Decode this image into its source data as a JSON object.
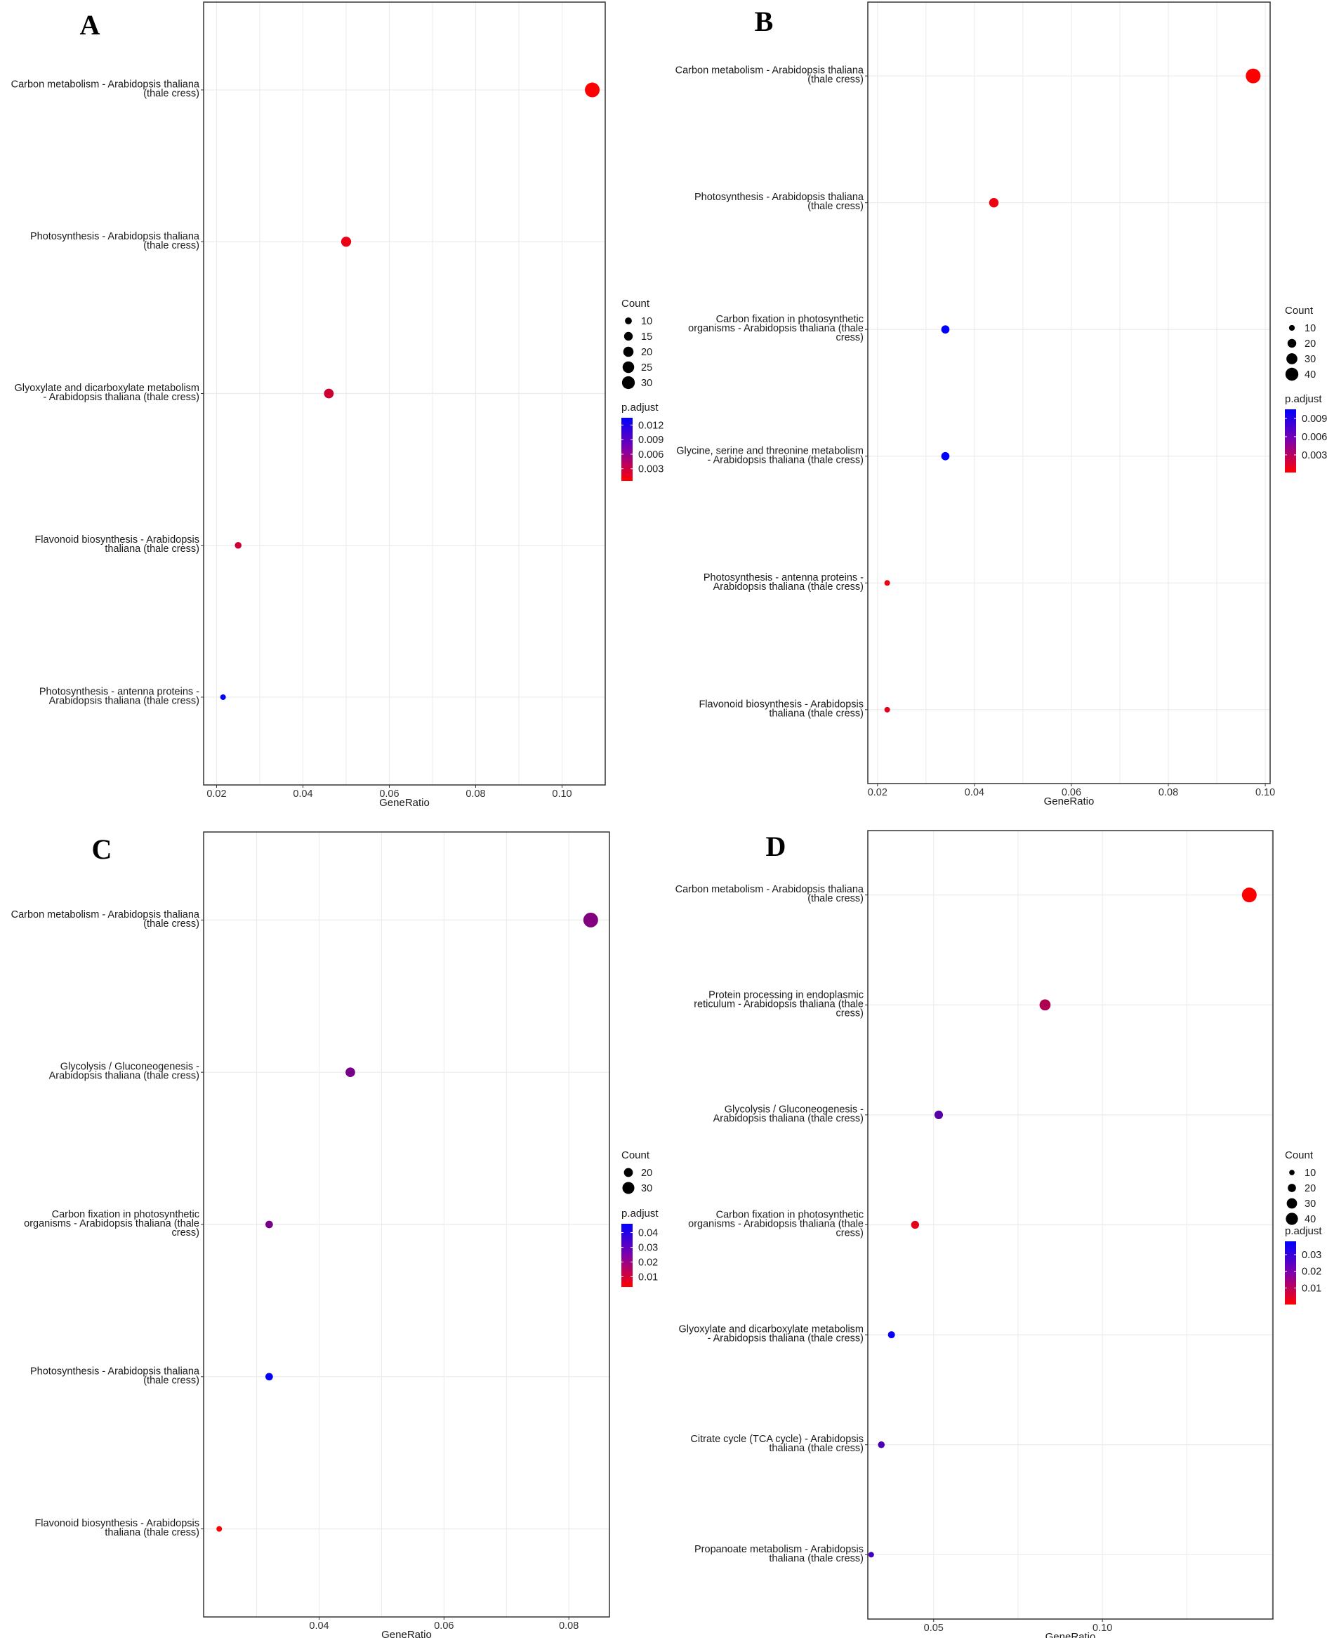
{
  "chart_data": [
    {
      "type": "scatter",
      "panel": "A",
      "xlabel": "GeneRatio",
      "xlim": [
        0.017,
        0.11
      ],
      "xticks": [
        0.02,
        0.04,
        0.06,
        0.08,
        0.1
      ],
      "xtick_labels": [
        "0.02",
        "0.04",
        "0.06",
        "0.08",
        "0.10"
      ],
      "grid": true,
      "points": [
        {
          "label": [
            "Carbon metabolism - Arabidopsis thaliana",
            "(thale cress)"
          ],
          "x": 0.107,
          "count": 32,
          "padj": 0.0005
        },
        {
          "label": [
            "Photosynthesis - Arabidopsis thaliana",
            "(thale cress)"
          ],
          "x": 0.05,
          "count": 16,
          "padj": 0.0015
        },
        {
          "label": [
            "Glyoxylate and dicarboxylate metabolism",
            "- Arabidopsis thaliana (thale cress)"
          ],
          "x": 0.046,
          "count": 15,
          "padj": 0.003
        },
        {
          "label": [
            "Flavonoid biosynthesis - Arabidopsis",
            "thaliana (thale cress)"
          ],
          "x": 0.025,
          "count": 8,
          "padj": 0.003
        },
        {
          "label": [
            "Photosynthesis - antenna proteins -",
            "Arabidopsis thaliana (thale cress)"
          ],
          "x": 0.0215,
          "count": 6,
          "padj": 0.0135
        }
      ],
      "size_legend": {
        "title": "Count",
        "values": [
          10,
          15,
          20,
          25,
          30
        ],
        "labels": [
          "10",
          "15",
          "20",
          "25",
          "30"
        ],
        "min": 6,
        "max": 32
      },
      "color_legend": {
        "title": "p.adjust",
        "min": 0.0005,
        "max": 0.0135,
        "ticks": [
          0.012,
          0.009,
          0.006,
          0.003
        ],
        "tick_labels": [
          "0.012",
          "0.009",
          "0.006",
          "0.003"
        ]
      }
    },
    {
      "type": "scatter",
      "panel": "B",
      "xlabel": "GeneRatio",
      "xlim": [
        0.018,
        0.101
      ],
      "xticks": [
        0.02,
        0.04,
        0.06,
        0.08,
        0.1
      ],
      "xtick_labels": [
        "0.02",
        "0.04",
        "0.06",
        "0.08",
        "0.10"
      ],
      "grid": true,
      "points": [
        {
          "label": [
            "Carbon metabolism - Arabidopsis thaliana",
            "(thale cress)"
          ],
          "x": 0.0975,
          "count": 42,
          "padj": 0.0001
        },
        {
          "label": [
            "Photosynthesis - Arabidopsis thaliana",
            "(thale cress)"
          ],
          "x": 0.044,
          "count": 19,
          "padj": 0.0008
        },
        {
          "label": [
            "Carbon fixation in photosynthetic",
            "organisms - Arabidopsis thaliana (thale",
            "cress)"
          ],
          "x": 0.034,
          "count": 15,
          "padj": 0.0105
        },
        {
          "label": [
            "Glycine, serine and threonine metabolism",
            "- Arabidopsis thaliana (thale cress)"
          ],
          "x": 0.034,
          "count": 15,
          "padj": 0.0105
        },
        {
          "label": [
            "Photosynthesis - antenna proteins -",
            "Arabidopsis thaliana (thale cress)"
          ],
          "x": 0.022,
          "count": 8,
          "padj": 0.0008
        },
        {
          "label": [
            "Flavonoid biosynthesis - Arabidopsis",
            "thaliana (thale cress)"
          ],
          "x": 0.022,
          "count": 8,
          "padj": 0.0012
        }
      ],
      "size_legend": {
        "title": "Count",
        "values": [
          10,
          20,
          30,
          40
        ],
        "labels": [
          "10",
          "20",
          "30",
          "40"
        ],
        "min": 8,
        "max": 42
      },
      "color_legend": {
        "title": "p.adjust",
        "min": 0.0001,
        "max": 0.0105,
        "ticks": [
          0.009,
          0.006,
          0.003
        ],
        "tick_labels": [
          "0.009",
          "0.006",
          "0.003"
        ]
      }
    },
    {
      "type": "scatter",
      "panel": "C",
      "xlabel": "GeneRatio",
      "xlim": [
        0.0215,
        0.0865
      ],
      "xticks": [
        0.04,
        0.06,
        0.08
      ],
      "xtick_labels": [
        "0.04",
        "0.06",
        "0.08"
      ],
      "grid": true,
      "points": [
        {
          "label": [
            "Carbon metabolism - Arabidopsis thaliana",
            "(thale cress)"
          ],
          "x": 0.0835,
          "count": 35,
          "padj": 0.024
        },
        {
          "label": [
            "Glycolysis / Gluconeogenesis -",
            "Arabidopsis thaliana (thale cress)"
          ],
          "x": 0.045,
          "count": 19,
          "padj": 0.026
        },
        {
          "label": [
            "Carbon fixation in photosynthetic",
            "organisms - Arabidopsis thaliana (thale",
            "cress)"
          ],
          "x": 0.032,
          "count": 14,
          "padj": 0.026
        },
        {
          "label": [
            "Photosynthesis - Arabidopsis thaliana",
            "(thale cress)"
          ],
          "x": 0.032,
          "count": 14,
          "padj": 0.045
        },
        {
          "label": [
            "Flavonoid biosynthesis - Arabidopsis",
            "thaliana (thale cress)"
          ],
          "x": 0.024,
          "count": 10,
          "padj": 0.004
        }
      ],
      "size_legend": {
        "title": "Count",
        "values": [
          20,
          30
        ],
        "labels": [
          "20",
          "30"
        ],
        "min": 10,
        "max": 35
      },
      "color_legend": {
        "title": "p.adjust",
        "min": 0.003,
        "max": 0.046,
        "ticks": [
          0.04,
          0.03,
          0.02,
          0.01
        ],
        "tick_labels": [
          "0.04",
          "0.03",
          "0.02",
          "0.01"
        ]
      }
    },
    {
      "type": "scatter",
      "panel": "D",
      "xlabel": "GeneRatio",
      "xlim": [
        0.0305,
        0.1505
      ],
      "xticks": [
        0.05,
        0.1
      ],
      "xtick_labels": [
        "0.05",
        "0.10"
      ],
      "grid": true,
      "points": [
        {
          "label": [
            "Carbon metabolism - Arabidopsis thaliana",
            "(thale cress)"
          ],
          "x": 0.1435,
          "count": 47,
          "padj": 0.0001
        },
        {
          "label": [
            "Protein processing in endoplasmic",
            "reticulum - Arabidopsis thaliana (thale",
            "cress)"
          ],
          "x": 0.083,
          "count": 28,
          "padj": 0.012
        },
        {
          "label": [
            "Glycolysis / Gluconeogenesis -",
            "Arabidopsis thaliana (thale cress)"
          ],
          "x": 0.0515,
          "count": 18,
          "padj": 0.025
        },
        {
          "label": [
            "Carbon fixation in photosynthetic",
            "organisms - Arabidopsis thaliana (thale",
            "cress)"
          ],
          "x": 0.0445,
          "count": 16,
          "padj": 0.004
        },
        {
          "label": [
            "Glyoxylate and dicarboxylate metabolism",
            "- Arabidopsis thaliana (thale cress)"
          ],
          "x": 0.0375,
          "count": 13,
          "padj": 0.037
        },
        {
          "label": [
            "Citrate cycle (TCA cycle) - Arabidopsis",
            "thaliana (thale cress)"
          ],
          "x": 0.0345,
          "count": 12,
          "padj": 0.027
        },
        {
          "label": [
            "Propanoate metabolism - Arabidopsis",
            "thaliana (thale cress)"
          ],
          "x": 0.0315,
          "count": 9,
          "padj": 0.029
        }
      ],
      "size_legend": {
        "title": "Count",
        "values": [
          10,
          20,
          30,
          40
        ],
        "labels": [
          "10",
          "20",
          "30",
          "40"
        ],
        "min": 9,
        "max": 47
      },
      "color_legend": {
        "title": "p.adjust",
        "min": 0.0001,
        "max": 0.038,
        "ticks": [
          0.03,
          0.02,
          0.01
        ],
        "tick_labels": [
          "0.03",
          "0.02",
          "0.01"
        ]
      }
    }
  ],
  "colors": {
    "low": "#ff0000",
    "high": "#0000ff",
    "grid": "#ebebeb",
    "border": "#333333"
  }
}
